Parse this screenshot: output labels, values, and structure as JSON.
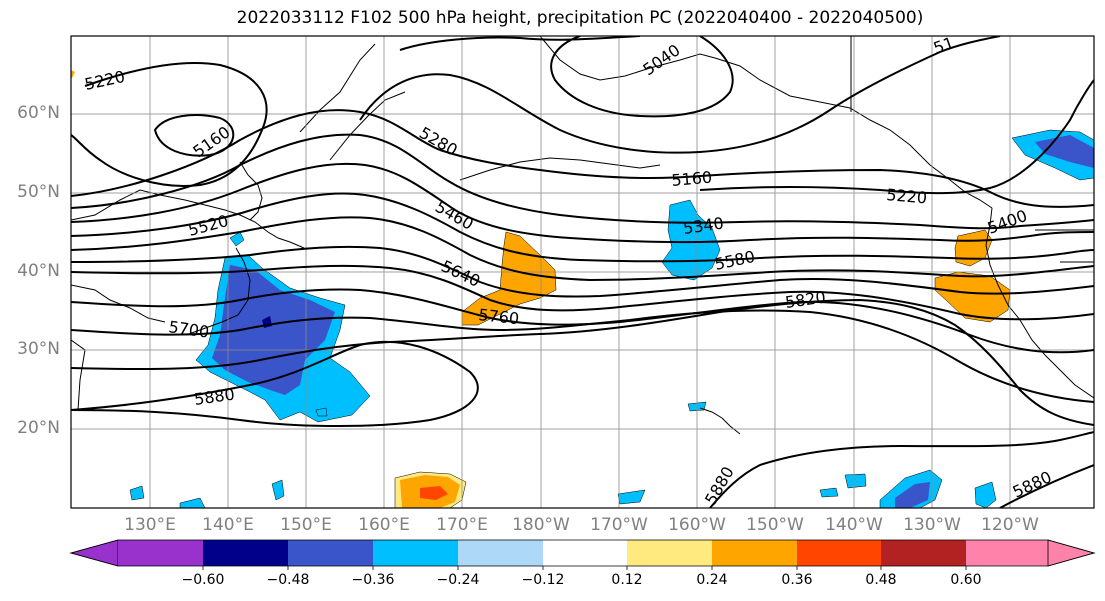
{
  "title": "2022033112 F102 500 hPa height, precipitation PC (2022040400 - 2022040500)",
  "map": {
    "projection": "PlateCarree",
    "lon_range_deg_east": [
      121,
      252
    ],
    "lat_range_deg": [
      10,
      70
    ],
    "grid": true,
    "lat_labels": [
      "60°N",
      "50°N",
      "40°N",
      "30°N",
      "20°N"
    ],
    "lon_labels": [
      "130°E",
      "140°E",
      "150°E",
      "160°E",
      "170°E",
      "180°W",
      "170°W",
      "160°W",
      "150°W",
      "140°W",
      "130°W",
      "120°W"
    ],
    "contour_labels": [
      "5220",
      "5160",
      "5520",
      "5700",
      "5880",
      "5280",
      "5460",
      "5640",
      "5760",
      "5040",
      "5160",
      "5340",
      "5580",
      "5220",
      "5820",
      "5400",
      "5880",
      "5880",
      "51"
    ]
  },
  "colorbar": {
    "tick_labels": [
      "−0.60",
      "−0.48",
      "−0.36",
      "−0.24",
      "−0.12",
      "0.12",
      "0.24",
      "0.36",
      "0.48",
      "0.60"
    ],
    "colors": [
      "#9932CC",
      "#00008B",
      "#3A54C9",
      "#00BFFF",
      "#ADD8F7",
      "#FFFFFF",
      "#FFEA80",
      "#FFA500",
      "#FF4500",
      "#B22222",
      "#FF82AB"
    ],
    "extend": "both"
  }
}
